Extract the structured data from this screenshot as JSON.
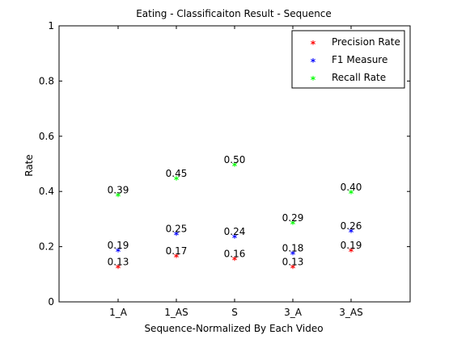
{
  "chart_data": {
    "type": "scatter",
    "title": "Eating - Classificaiton Result - Sequence",
    "xlabel": "Sequence-Normalized By Each Video",
    "ylabel": "Rate",
    "categories": [
      "1_A",
      "1_AS",
      "S",
      "3_A",
      "3_AS"
    ],
    "ylim": [
      0,
      1
    ],
    "yticks": [
      "0",
      "0.2",
      "0.4",
      "0.6",
      "0.8",
      "1"
    ],
    "legend_position": "top-right",
    "marker": "*",
    "series": [
      {
        "name": "Precision Rate",
        "color": "#ff0000",
        "values": [
          0.13,
          0.17,
          0.16,
          0.13,
          0.19
        ],
        "labels": [
          "0.13",
          "0.17",
          "0.16",
          "0.13",
          "0.19"
        ]
      },
      {
        "name": "F1 Measure",
        "color": "#0000ff",
        "values": [
          0.19,
          0.25,
          0.24,
          0.18,
          0.26
        ],
        "labels": [
          "0.19",
          "0.25",
          "0.24",
          "0.18",
          "0.26"
        ]
      },
      {
        "name": "Recall Rate",
        "color": "#00ff00",
        "values": [
          0.39,
          0.45,
          0.5,
          0.29,
          0.4
        ],
        "labels": [
          "0.39",
          "0.45",
          "0.50",
          "0.29",
          "0.40"
        ]
      }
    ]
  }
}
